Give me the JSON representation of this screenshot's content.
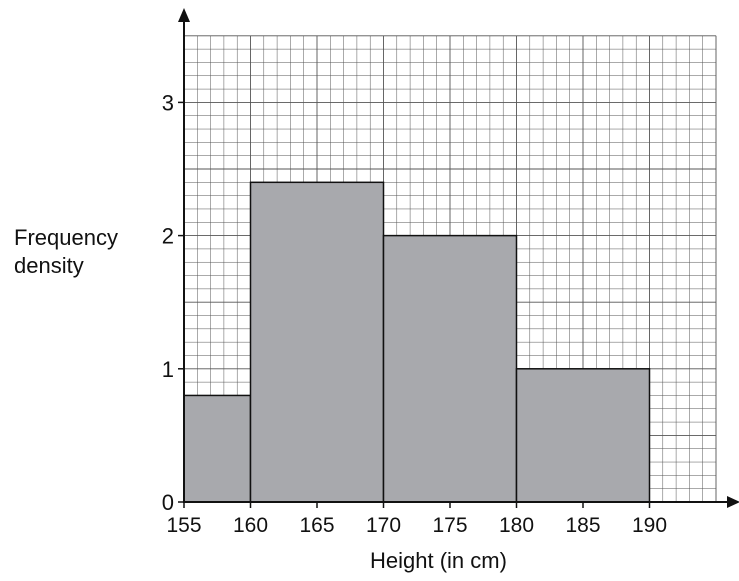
{
  "chart_data": {
    "type": "bar",
    "histogram": true,
    "title": "",
    "xlabel": "Height (in cm)",
    "ylabel": [
      "Frequency",
      "density"
    ],
    "bins": [
      {
        "from": 155,
        "to": 160,
        "value": 0.8
      },
      {
        "from": 160,
        "to": 170,
        "value": 2.4
      },
      {
        "from": 170,
        "to": 180,
        "value": 2.0
      },
      {
        "from": 180,
        "to": 190,
        "value": 1.0
      }
    ],
    "x_ticks": [
      "155",
      "160",
      "165",
      "170",
      "175",
      "180",
      "185",
      "190"
    ],
    "y_ticks": [
      "0",
      "1",
      "2",
      "3"
    ],
    "xlim": [
      155,
      195
    ],
    "ylim": [
      0,
      3.5
    ],
    "grid": true,
    "colors": {
      "bar_fill": "#a8a9ad",
      "grid_line": "#555555",
      "axis": "#111111"
    }
  }
}
